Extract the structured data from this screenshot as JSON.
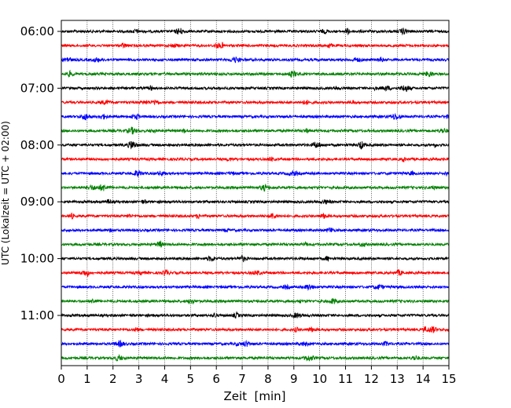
{
  "chart_data": {
    "type": "line",
    "title": "",
    "xlabel": "Zeit  [min]",
    "ylabel": "UTC (Lokalzeit = UTC + 02:00)",
    "xlim": [
      0,
      15
    ],
    "x_ticks": [
      "0",
      "1",
      "2",
      "3",
      "4",
      "5",
      "6",
      "7",
      "8",
      "9",
      "10",
      "11",
      "12",
      "13",
      "14",
      "15"
    ],
    "y_ticks": [
      "06:00",
      "07:00",
      "08:00",
      "09:00",
      "10:00",
      "11:00"
    ],
    "trace_start_times": [
      "06:00",
      "06:15",
      "06:30",
      "06:45",
      "07:00",
      "07:15",
      "07:30",
      "07:45",
      "08:00",
      "08:15",
      "08:30",
      "08:45",
      "09:00",
      "09:15",
      "09:30",
      "09:45",
      "10:00",
      "10:15",
      "10:30",
      "10:45",
      "11:00",
      "11:15",
      "11:30",
      "11:45"
    ],
    "trace_colors": [
      "#000000",
      "#ff0000",
      "#0000ff",
      "#008000"
    ],
    "grid_x": true,
    "grid_y": false,
    "legend": "none"
  }
}
